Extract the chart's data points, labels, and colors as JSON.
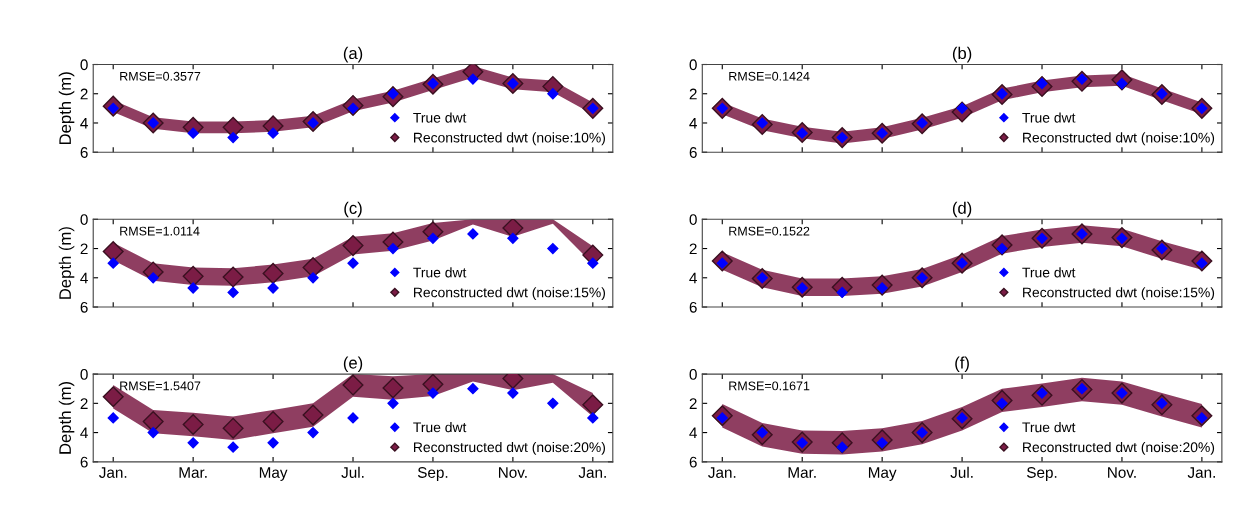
{
  "chart_data": [
    {
      "type": "scatter",
      "title": "(a)",
      "ylabel": "Depth (m)",
      "categories": [
        null,
        null,
        null,
        null,
        null,
        null,
        null,
        null,
        null,
        null,
        null,
        null,
        null
      ],
      "ylim": [
        6,
        0
      ],
      "yticks": [
        0,
        2,
        4,
        6
      ],
      "tick_labels": "y",
      "marker": "diamond",
      "legend": "bottom right",
      "grid": false,
      "annotations": [
        "RMSE=0.3577"
      ],
      "series": [
        {
          "name": "True dwt",
          "color": "#0000ff",
          "values": [
            3,
            4,
            4.7,
            5,
            4.7,
            4,
            3,
            2,
            1.3,
            1,
            1.3,
            2,
            3
          ]
        },
        {
          "name": "Reconstructed dwt (noise:10%)",
          "color": "#7b1c45",
          "values": [
            2.85,
            4.0,
            4.3,
            4.3,
            4.2,
            3.9,
            2.8,
            2.2,
            1.35,
            0.5,
            1.3,
            1.5,
            3.0
          ],
          "lower": [
            3.25,
            4.4,
            4.7,
            4.7,
            4.6,
            4.3,
            3.2,
            2.6,
            1.75,
            0.9,
            1.7,
            1.9,
            3.4
          ],
          "upper": [
            2.45,
            3.6,
            3.9,
            3.9,
            3.8,
            3.5,
            2.4,
            1.8,
            0.95,
            0.1,
            0.9,
            1.1,
            2.6
          ]
        }
      ]
    },
    {
      "type": "scatter",
      "title": "(b)",
      "categories": [
        null,
        null,
        null,
        null,
        null,
        null,
        null,
        null,
        null,
        null,
        null,
        null,
        null
      ],
      "ylim": [
        6,
        0
      ],
      "yticks": [
        0,
        2,
        4,
        6
      ],
      "tick_labels": "y",
      "marker": "diamond",
      "legend": "bottom right",
      "grid": false,
      "annotations": [
        "RMSE=0.1424"
      ],
      "series": [
        {
          "name": "True dwt",
          "color": "#0000ff",
          "values": [
            3,
            4,
            4.7,
            5,
            4.7,
            4,
            3,
            2,
            1.3,
            1,
            1.3,
            2,
            3
          ]
        },
        {
          "name": "Reconstructed dwt (noise:10%)",
          "color": "#7b1c45",
          "values": [
            3.0,
            4.1,
            4.65,
            5.0,
            4.7,
            4.05,
            3.25,
            2.05,
            1.5,
            1.15,
            1.05,
            2.05,
            3.0
          ],
          "lower": [
            3.4,
            4.5,
            5.05,
            5.4,
            5.1,
            4.45,
            3.65,
            2.45,
            1.9,
            1.55,
            1.45,
            2.45,
            3.4
          ],
          "upper": [
            2.6,
            3.7,
            4.25,
            4.6,
            4.3,
            3.65,
            2.85,
            1.65,
            1.1,
            0.75,
            0.65,
            1.65,
            2.6
          ]
        }
      ]
    },
    {
      "type": "scatter",
      "title": "(c)",
      "ylabel": "Depth (m)",
      "categories": [
        null,
        null,
        null,
        null,
        null,
        null,
        null,
        null,
        null,
        null,
        null,
        null,
        null
      ],
      "ylim": [
        6,
        0
      ],
      "yticks": [
        0,
        2,
        4,
        6
      ],
      "tick_labels": "y",
      "marker": "diamond",
      "legend": "bottom right",
      "grid": false,
      "annotations": [
        "RMSE=1.0114"
      ],
      "series": [
        {
          "name": "True dwt",
          "color": "#0000ff",
          "values": [
            3,
            4,
            4.7,
            5,
            4.7,
            4,
            3,
            2,
            1.3,
            1,
            1.3,
            2,
            3
          ]
        },
        {
          "name": "Reconstructed dwt (noise:15%)",
          "color": "#7b1c45",
          "values": [
            2.2,
            3.6,
            3.9,
            3.95,
            3.7,
            3.3,
            1.8,
            1.55,
            0.85,
            null,
            0.6,
            null,
            2.45
          ],
          "lower": [
            2.8,
            4.2,
            4.5,
            4.55,
            4.3,
            3.9,
            2.4,
            2.15,
            1.45,
            0.35,
            1.2,
            0.3,
            3.05
          ],
          "upper": [
            1.6,
            3.0,
            3.3,
            3.35,
            3.1,
            2.7,
            1.2,
            0.95,
            0.25,
            0,
            0.0,
            0,
            1.85
          ]
        }
      ]
    },
    {
      "type": "scatter",
      "title": "(d)",
      "categories": [
        null,
        null,
        null,
        null,
        null,
        null,
        null,
        null,
        null,
        null,
        null,
        null,
        null
      ],
      "ylim": [
        6,
        0
      ],
      "yticks": [
        0,
        2,
        4,
        6
      ],
      "tick_labels": "y",
      "marker": "diamond",
      "legend": "bottom right",
      "grid": false,
      "annotations": [
        "RMSE=0.1522"
      ],
      "series": [
        {
          "name": "True dwt",
          "color": "#0000ff",
          "values": [
            3,
            4,
            4.7,
            5,
            4.7,
            4,
            3,
            2,
            1.3,
            1,
            1.3,
            2,
            3
          ]
        },
        {
          "name": "Reconstructed dwt (noise:15%)",
          "color": "#7b1c45",
          "values": [
            2.85,
            4.05,
            4.65,
            4.65,
            4.5,
            4.0,
            3.0,
            1.75,
            1.3,
            1.0,
            1.25,
            2.1,
            2.85
          ],
          "lower": [
            3.45,
            4.65,
            5.25,
            5.25,
            5.1,
            4.6,
            3.6,
            2.35,
            1.9,
            1.6,
            1.85,
            2.7,
            3.45
          ],
          "upper": [
            2.25,
            3.45,
            4.05,
            4.05,
            3.9,
            3.4,
            2.4,
            1.15,
            0.7,
            0.4,
            0.65,
            1.5,
            2.25
          ]
        }
      ]
    },
    {
      "type": "scatter",
      "title": "(e)",
      "ylabel": "Depth (m)",
      "categories": [
        "Jan.",
        null,
        "Mar.",
        null,
        "May",
        null,
        "Jul.",
        null,
        "Sep.",
        null,
        "Nov.",
        null,
        "Jan."
      ],
      "ylim": [
        6,
        0
      ],
      "yticks": [
        0,
        2,
        4,
        6
      ],
      "marker": "diamond",
      "legend": "bottom right",
      "grid": false,
      "annotations": [
        "RMSE=1.5407"
      ],
      "series": [
        {
          "name": "True dwt",
          "color": "#0000ff",
          "values": [
            3,
            4,
            4.7,
            5,
            4.7,
            4,
            3,
            2,
            1.3,
            1,
            1.3,
            2,
            3
          ]
        },
        {
          "name": "Reconstructed dwt (noise:20%)",
          "color": "#7b1c45",
          "values": [
            1.55,
            3.25,
            3.45,
            3.7,
            3.25,
            2.8,
            0.75,
            0.95,
            0.7,
            null,
            0.3,
            null,
            2.1
          ],
          "lower": [
            2.35,
            4.05,
            4.25,
            4.5,
            4.05,
            3.6,
            1.55,
            1.75,
            1.5,
            0.5,
            1.1,
            0.6,
            2.9
          ],
          "upper": [
            0.75,
            2.45,
            2.65,
            2.9,
            2.45,
            2.0,
            0.0,
            0.15,
            0.0,
            0,
            0.0,
            0,
            1.3
          ]
        }
      ]
    },
    {
      "type": "scatter",
      "title": "(f)",
      "categories": [
        "Jan.",
        null,
        "Mar.",
        null,
        "May",
        null,
        "Jul.",
        null,
        "Sep.",
        null,
        "Nov.",
        null,
        "Jan."
      ],
      "ylim": [
        6,
        0
      ],
      "yticks": [
        0,
        2,
        4,
        6
      ],
      "marker": "diamond",
      "legend": "bottom right",
      "grid": false,
      "annotations": [
        "RMSE=0.1671"
      ],
      "series": [
        {
          "name": "True dwt",
          "color": "#0000ff",
          "values": [
            3,
            4,
            4.7,
            5,
            4.7,
            4,
            3,
            2,
            1.3,
            1,
            1.3,
            2,
            3
          ]
        },
        {
          "name": "Reconstructed dwt (noise:20%)",
          "color": "#7b1c45",
          "values": [
            2.85,
            4.15,
            4.65,
            4.7,
            4.5,
            4.0,
            3.05,
            1.8,
            1.45,
            1.05,
            1.3,
            2.1,
            2.85
          ],
          "lower": [
            3.65,
            4.95,
            5.45,
            5.5,
            5.3,
            4.8,
            3.85,
            2.6,
            2.25,
            1.85,
            2.1,
            2.9,
            3.65
          ],
          "upper": [
            2.05,
            3.35,
            3.85,
            3.9,
            3.7,
            3.2,
            2.25,
            1.0,
            0.65,
            0.25,
            0.5,
            1.3,
            2.05
          ]
        }
      ]
    }
  ]
}
